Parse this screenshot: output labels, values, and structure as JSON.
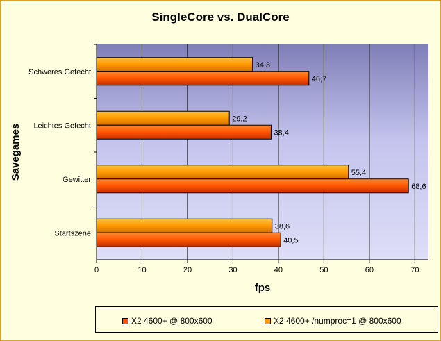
{
  "chart_data": {
    "type": "bar",
    "orientation": "horizontal",
    "title": "SingleCore vs. DualCore",
    "xlabel": "fps",
    "ylabel": "Savegames",
    "categories": [
      "Schweres Gefecht",
      "Leichtes Gefecht",
      "Gewitter",
      "Startszene"
    ],
    "series": [
      {
        "name": "X2 4600+ /numproc=1 @ 800x600",
        "values": [
          34.3,
          29.2,
          55.4,
          38.6
        ],
        "labels": [
          "34,3",
          "29,2",
          "55,4",
          "38,6"
        ],
        "color": "#ff9900"
      },
      {
        "name": "X2 4600+ @ 800x600",
        "values": [
          46.7,
          38.4,
          68.6,
          40.5
        ],
        "labels": [
          "46,7",
          "38,4",
          "68,6",
          "40,5"
        ],
        "color": "#ff5500"
      }
    ],
    "xlim": [
      0,
      73
    ],
    "xticks": [
      "0",
      "10",
      "20",
      "30",
      "40",
      "50",
      "60",
      "70"
    ],
    "grid": true,
    "legend_position": "bottom",
    "colors": {
      "frame_bg": "#ffffe0",
      "frame_border": "#e0a020",
      "plot_bg_top": "#7f7fb8",
      "plot_bg_bottom": "#dedef7"
    }
  }
}
